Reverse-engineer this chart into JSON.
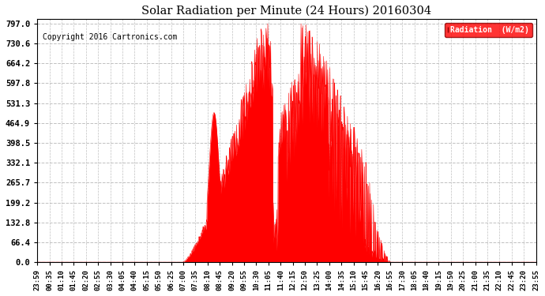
{
  "title": "Solar Radiation per Minute (24 Hours) 20160304",
  "copyright": "Copyright 2016 Cartronics.com",
  "legend_label": "Radiation  (W/m2)",
  "background_color": "#ffffff",
  "plot_bg_color": "#ffffff",
  "fill_color": "#ff0000",
  "line_color": "#ff0000",
  "grid_color": "#c0c0c0",
  "yticks": [
    0.0,
    66.4,
    132.8,
    199.2,
    265.7,
    332.1,
    398.5,
    464.9,
    531.3,
    597.8,
    664.2,
    730.6,
    797.0
  ],
  "ymax": 797.0,
  "ymin": 0.0,
  "xtick_labels": [
    "23:59",
    "00:35",
    "01:10",
    "01:45",
    "02:20",
    "02:55",
    "03:30",
    "04:05",
    "04:40",
    "05:15",
    "05:50",
    "06:25",
    "07:00",
    "07:35",
    "08:10",
    "08:45",
    "09:20",
    "09:55",
    "10:30",
    "11:05",
    "11:40",
    "12:15",
    "12:50",
    "13:25",
    "14:00",
    "14:35",
    "15:10",
    "15:45",
    "16:20",
    "16:55",
    "17:30",
    "18:05",
    "18:40",
    "19:15",
    "19:50",
    "20:25",
    "21:00",
    "21:35",
    "22:10",
    "22:45",
    "23:20",
    "23:55"
  ],
  "n_points": 1440
}
